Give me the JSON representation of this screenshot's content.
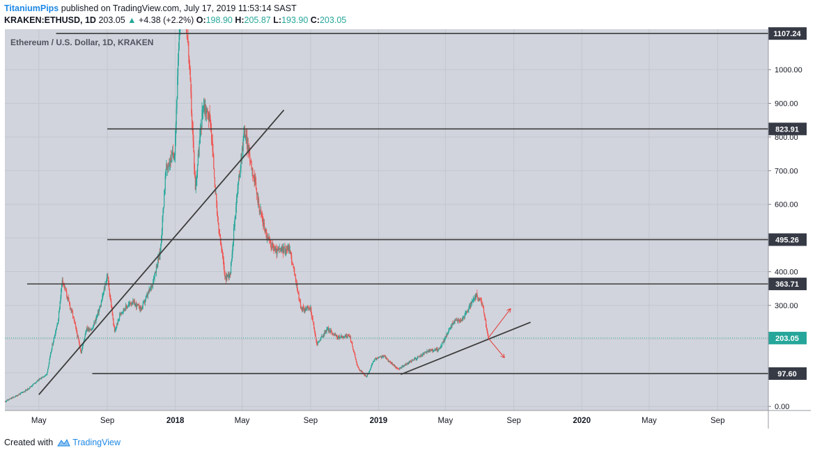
{
  "header": {
    "publisher": "TitaniumPips",
    "published_text": "published on TradingView.com, July 17, 2019 11:53:14 SAST",
    "symbol": "KRAKEN:ETHUSD, 1D",
    "price": "203.05",
    "change": "+4.38 (+2.2%)",
    "o_label": "O:",
    "o_value": "198.90",
    "h_label": "H:",
    "h_value": "205.87",
    "l_label": "L:",
    "l_value": "193.90",
    "c_label": "C:",
    "c_value": "203.05"
  },
  "footer": {
    "created_with": "Created with",
    "brand": "TradingView"
  },
  "colors": {
    "up": "#26a69a",
    "down": "#ef5350",
    "background": "#d1d4dc",
    "line": "#3c3c3c",
    "arrow": "#e53935"
  },
  "chart_data": {
    "type": "candlestick",
    "title": "Ethereum / U.S. Dollar, 1D, KRAKEN",
    "y_axis": {
      "ticks": [
        0,
        100,
        200,
        300,
        400,
        500,
        600,
        700,
        800,
        900,
        1000
      ],
      "tick_labels": [
        "0.00",
        "",
        "",
        "300.00",
        "400.00",
        "500.00",
        "600.00",
        "700.00",
        "800.00",
        "900.00",
        "1000.00"
      ],
      "range": [
        -12,
        1120
      ]
    },
    "x_axis": {
      "ticks": [
        "2017-05-01",
        "2017-09-01",
        "2018-01-01",
        "2018-05-01",
        "2018-09-01",
        "2019-01-01",
        "2019-05-01",
        "2019-09-01",
        "2020-01-01",
        "2020-05-01",
        "2020-09-01"
      ],
      "tick_labels": [
        "May",
        "Sep",
        "2018",
        "May",
        "Sep",
        "2019",
        "May",
        "Sep",
        "2020",
        "May",
        "Sep"
      ]
    },
    "price_path": [
      [
        "2017-03-01",
        15
      ],
      [
        "2017-03-20",
        30
      ],
      [
        "2017-04-10",
        50
      ],
      [
        "2017-05-01",
        80
      ],
      [
        "2017-05-15",
        95
      ],
      [
        "2017-05-25",
        180
      ],
      [
        "2017-06-05",
        260
      ],
      [
        "2017-06-12",
        380
      ],
      [
        "2017-06-20",
        330
      ],
      [
        "2017-07-01",
        270
      ],
      [
        "2017-07-16",
        160
      ],
      [
        "2017-07-25",
        230
      ],
      [
        "2017-08-05",
        230
      ],
      [
        "2017-08-20",
        300
      ],
      [
        "2017-09-01",
        390
      ],
      [
        "2017-09-14",
        220
      ],
      [
        "2017-09-25",
        280
      ],
      [
        "2017-10-15",
        310
      ],
      [
        "2017-11-01",
        290
      ],
      [
        "2017-11-20",
        360
      ],
      [
        "2017-12-05",
        460
      ],
      [
        "2017-12-15",
        700
      ],
      [
        "2017-12-31",
        760
      ],
      [
        "2018-01-13",
        1300
      ],
      [
        "2018-01-25",
        1050
      ],
      [
        "2018-02-06",
        650
      ],
      [
        "2018-02-20",
        900
      ],
      [
        "2018-03-05",
        850
      ],
      [
        "2018-03-18",
        550
      ],
      [
        "2018-04-01",
        380
      ],
      [
        "2018-04-10",
        400
      ],
      [
        "2018-04-20",
        600
      ],
      [
        "2018-05-05",
        820
      ],
      [
        "2018-05-20",
        700
      ],
      [
        "2018-06-01",
        590
      ],
      [
        "2018-06-15",
        500
      ],
      [
        "2018-07-01",
        460
      ],
      [
        "2018-07-25",
        470
      ],
      [
        "2018-08-15",
        290
      ],
      [
        "2018-09-01",
        290
      ],
      [
        "2018-09-12",
        185
      ],
      [
        "2018-10-01",
        230
      ],
      [
        "2018-10-20",
        205
      ],
      [
        "2018-11-10",
        210
      ],
      [
        "2018-11-25",
        115
      ],
      [
        "2018-12-10",
        87
      ],
      [
        "2018-12-25",
        140
      ],
      [
        "2019-01-10",
        150
      ],
      [
        "2019-02-05",
        110
      ],
      [
        "2019-03-01",
        135
      ],
      [
        "2019-04-01",
        165
      ],
      [
        "2019-04-20",
        170
      ],
      [
        "2019-05-15",
        250
      ],
      [
        "2019-06-01",
        260
      ],
      [
        "2019-06-26",
        330
      ],
      [
        "2019-07-07",
        300
      ],
      [
        "2019-07-17",
        203
      ]
    ],
    "horizontal_levels": [
      {
        "value": 1107.24,
        "label": "1107.24",
        "from": "2017-06-01"
      },
      {
        "value": 823.91,
        "label": "823.91",
        "from": "2017-09-01"
      },
      {
        "value": 495.26,
        "label": "495.26",
        "from": "2017-09-01"
      },
      {
        "value": 363.71,
        "label": "363.71",
        "from": "2017-04-10"
      },
      {
        "value": 97.6,
        "label": "97.60",
        "from": "2017-08-05"
      }
    ],
    "current_price": {
      "value": 203.05,
      "label": "203.05"
    },
    "trendlines": [
      {
        "from": [
          "2017-05-01",
          35
        ],
        "to": [
          "2018-07-15",
          880
        ]
      },
      {
        "from": [
          "2019-02-10",
          95
        ],
        "to": [
          "2019-10-01",
          250
        ]
      }
    ],
    "arrows": [
      {
        "from": [
          "2019-07-17",
          203
        ],
        "to": [
          "2019-08-26",
          290
        ]
      },
      {
        "from": [
          "2019-07-17",
          203
        ],
        "to": [
          "2019-08-15",
          145
        ]
      }
    ]
  }
}
